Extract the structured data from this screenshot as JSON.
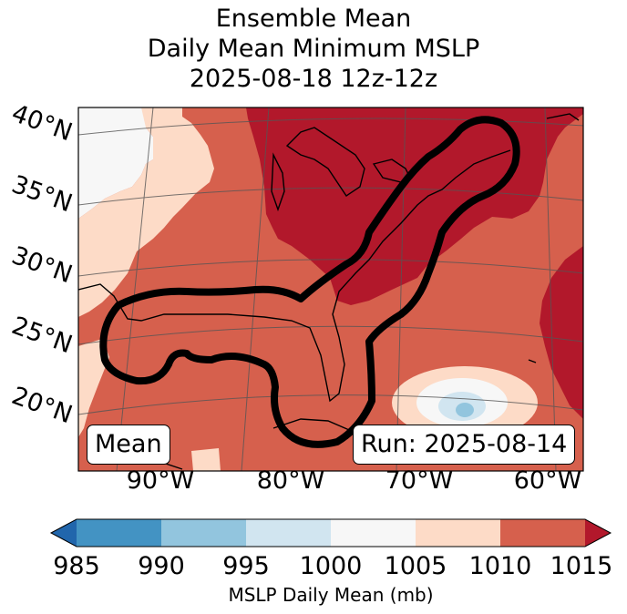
{
  "title": {
    "line1": "Ensemble Mean",
    "line2": "Daily Mean Minimum MSLP",
    "line3": "2025-08-18 12z-12z"
  },
  "map": {
    "lat_labels": [
      "40°N",
      "35°N",
      "30°N",
      "25°N",
      "20°N"
    ],
    "lon_labels": [
      "90°W",
      "80°W",
      "70°W",
      "60°W"
    ],
    "left_box": "Mean",
    "right_box": "Run: 2025-08-14"
  },
  "colorbar": {
    "ticks": [
      "985",
      "990",
      "995",
      "1000",
      "1005",
      "1010",
      "1015"
    ],
    "label": "MSLP Daily Mean (mb)",
    "colors": {
      "below": "#2166ac",
      "985_990": "#4393c3",
      "990_995": "#92c5de",
      "995_1000": "#d1e5f0",
      "1000_1005": "#f7f7f7",
      "1005_1010": "#fddbc7",
      "1010_1015": "#d6604d",
      "above": "#b2182b"
    }
  }
}
